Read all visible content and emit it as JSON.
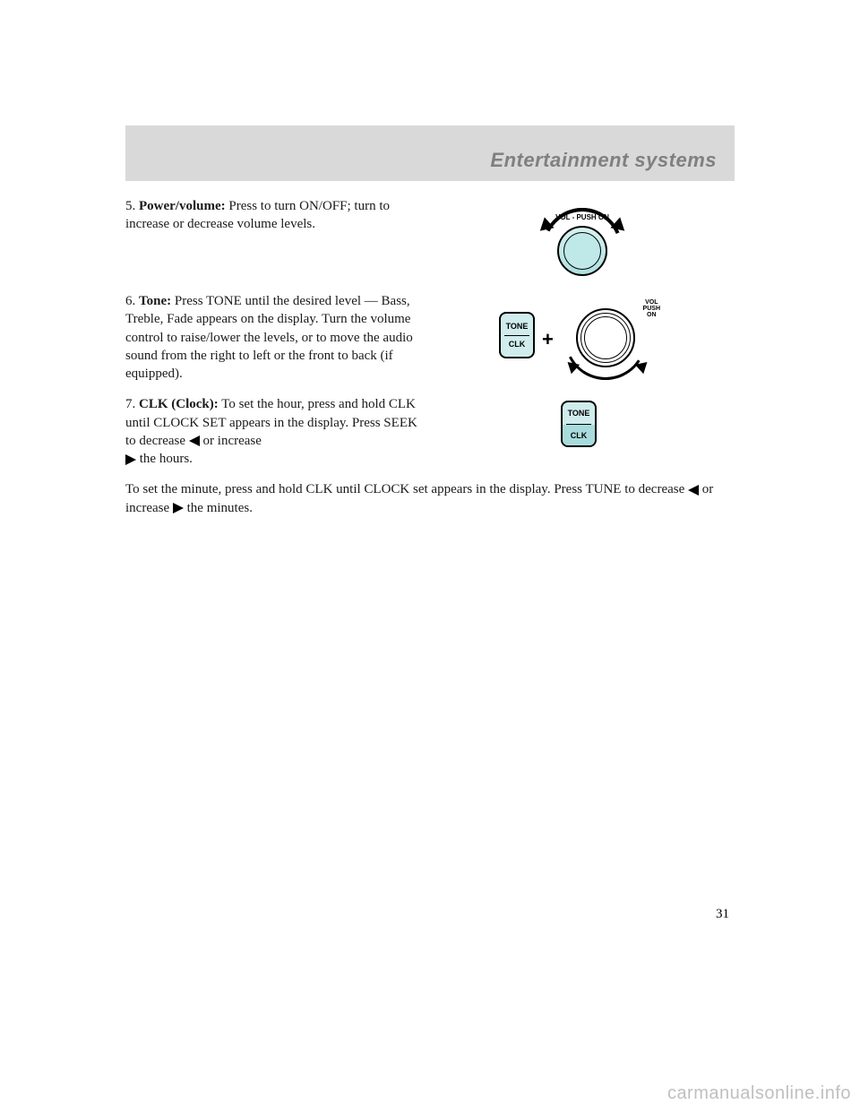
{
  "header": {
    "title": "Entertainment systems"
  },
  "items": {
    "i5": {
      "num": "5.",
      "label": "Power/volume:",
      "text": " Press to turn ON/OFF; turn to increase or decrease volume levels.",
      "fig": {
        "label": "VOL - PUSH ON"
      }
    },
    "i6": {
      "num": "6.",
      "label": "Tone:",
      "text": " Press TONE until the desired level — Bass, Treble, Fade appears on the display. Turn the volume control to raise/lower the levels, or to move the audio sound from the right to left or the front to back (if equipped).",
      "fig": {
        "btn_top": "TONE",
        "btn_bot": "CLK",
        "plus": "+",
        "dial_label": "VOL\nPUSH\nON"
      }
    },
    "i7": {
      "num": "7.",
      "label": "CLK (Clock):",
      "text_a": " To set the hour, press and hold CLK until CLOCK SET appears in the display. Press SEEK to decrease ",
      "text_b": " or increase ",
      "text_c": " the hours.",
      "fig": {
        "btn_top": "TONE",
        "btn_bot": "CLK"
      }
    },
    "para": {
      "a": "To set the minute, press and hold CLK until CLOCK set appears in the display. Press TUNE to decrease ",
      "b": " or increase ",
      "c": " the minutes."
    }
  },
  "page_number": "31",
  "watermark": "carmanualsonline.info",
  "colors": {
    "header_bg": "#d9d9d9",
    "header_text": "#808080",
    "button_fill": "#d0ecec",
    "knob_fill": "#bfe8e8"
  }
}
